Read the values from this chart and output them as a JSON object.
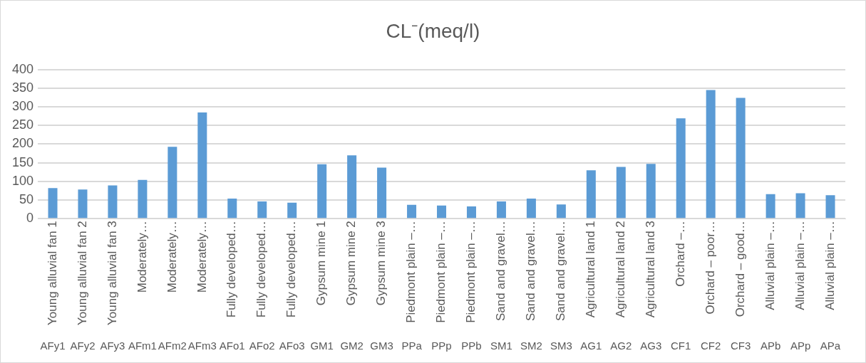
{
  "chart_data": {
    "type": "bar",
    "title": "CL⁻(meq/l)",
    "categories": [
      "Young alluvial fan 1",
      "Young alluvial fan 2",
      "Young alluvial fan 3",
      "Moderately…",
      "Moderately…",
      "Moderately…",
      "Fully developed…",
      "Fully developed…",
      "Fully developed…",
      "Gypsum mine 1",
      "Gypsum mine 2",
      "Gypsum mine 3",
      "Piedmont plain –…",
      "Piedmont plain –…",
      "Piedmont plain –…",
      "Sand and gravel…",
      "Sand and gravel…",
      "Sand and gravel…",
      "Agricultural land 1",
      "Agricultural land 2",
      "Agricultural land 3",
      "Orchard –…",
      "Orchard – poor…",
      "Orchard – good…",
      "Alluvial plain –…",
      "Alluvial plain –…",
      "Alluvial plain –…"
    ],
    "annotations": [
      "AFy1",
      "AFy2",
      "AFy3",
      "AFm1",
      "AFm2",
      "AFm3",
      "AFo1",
      "AFo2",
      "AFo3",
      "GM1",
      "GM2",
      "GM3",
      "PPa",
      "PPp",
      "PPb",
      "SM1",
      "SM2",
      "SM3",
      "AG1",
      "AG2",
      "AG3",
      "CF1",
      "CF2",
      "CF3",
      "APb",
      "APp",
      "APa"
    ],
    "values": [
      82,
      78,
      89,
      104,
      193,
      285,
      54,
      46,
      43,
      146,
      170,
      137,
      37,
      35,
      33,
      46,
      54,
      38,
      130,
      139,
      147,
      269,
      345,
      324,
      66,
      68,
      63
    ],
    "color": "#5b9bd5",
    "ylim": [
      0,
      400
    ],
    "yticks": [
      0,
      50,
      100,
      150,
      200,
      250,
      300,
      350,
      400
    ],
    "grid": "y"
  }
}
